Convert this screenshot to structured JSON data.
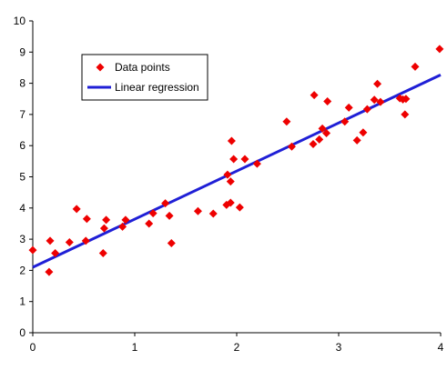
{
  "chart_data": {
    "type": "scatter",
    "title": "",
    "xlabel": "",
    "ylabel": "",
    "xlim": [
      0,
      4
    ],
    "ylim": [
      0,
      10
    ],
    "x_ticks": [
      "0",
      "1",
      "2",
      "3",
      "4"
    ],
    "y_ticks": [
      "0",
      "1",
      "2",
      "3",
      "4",
      "5",
      "6",
      "7",
      "8",
      "9",
      "10"
    ],
    "grid": false,
    "legend_position": "top-left",
    "series": [
      {
        "name": "Data points",
        "kind": "scatter",
        "marker": "diamond",
        "color": "#ee0000",
        "points": [
          [
            0.0,
            2.65
          ],
          [
            0.16,
            1.95
          ],
          [
            0.17,
            2.95
          ],
          [
            0.22,
            2.55
          ],
          [
            0.36,
            2.9
          ],
          [
            0.43,
            3.97
          ],
          [
            0.52,
            2.95
          ],
          [
            0.53,
            3.65
          ],
          [
            0.69,
            2.55
          ],
          [
            0.7,
            3.35
          ],
          [
            0.72,
            3.62
          ],
          [
            0.88,
            3.4
          ],
          [
            0.91,
            3.62
          ],
          [
            1.14,
            3.5
          ],
          [
            1.18,
            3.83
          ],
          [
            1.3,
            4.15
          ],
          [
            1.34,
            3.75
          ],
          [
            1.36,
            2.87
          ],
          [
            1.62,
            3.9
          ],
          [
            1.77,
            3.82
          ],
          [
            1.9,
            4.1
          ],
          [
            1.91,
            5.07
          ],
          [
            1.94,
            4.85
          ],
          [
            1.94,
            4.17
          ],
          [
            1.95,
            6.15
          ],
          [
            1.97,
            5.57
          ],
          [
            2.03,
            4.02
          ],
          [
            2.08,
            5.57
          ],
          [
            2.2,
            5.42
          ],
          [
            2.49,
            6.77
          ],
          [
            2.54,
            5.97
          ],
          [
            2.75,
            6.05
          ],
          [
            2.76,
            7.62
          ],
          [
            2.81,
            6.2
          ],
          [
            2.84,
            6.55
          ],
          [
            2.88,
            6.4
          ],
          [
            2.89,
            7.42
          ],
          [
            3.06,
            6.77
          ],
          [
            3.1,
            7.22
          ],
          [
            3.18,
            6.17
          ],
          [
            3.24,
            6.42
          ],
          [
            3.28,
            7.17
          ],
          [
            3.35,
            7.47
          ],
          [
            3.38,
            7.98
          ],
          [
            3.41,
            7.4
          ],
          [
            3.6,
            7.52
          ],
          [
            3.63,
            7.48
          ],
          [
            3.65,
            7.0
          ],
          [
            3.66,
            7.5
          ],
          [
            3.75,
            8.53
          ],
          [
            3.99,
            9.1
          ]
        ]
      },
      {
        "name": "Linear regression",
        "kind": "line",
        "color": "#1f1fd6",
        "points": [
          [
            0,
            2.1
          ],
          [
            4,
            8.27
          ]
        ]
      }
    ]
  }
}
